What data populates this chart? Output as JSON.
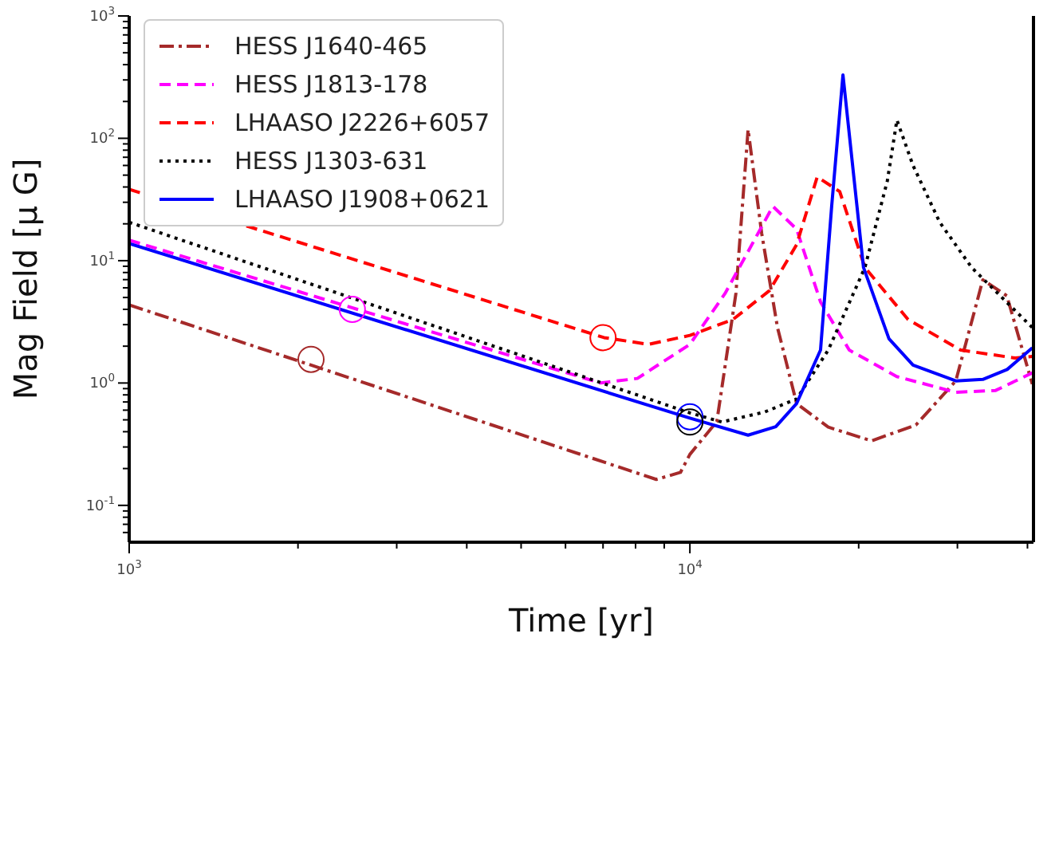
{
  "chart_data": {
    "type": "line",
    "xlabel": "Time [yr]",
    "ylabel": "Mag Field [μ G]",
    "log": "xy",
    "legend": "top left",
    "marker": "none",
    "xlim": [
      1000,
      41000
    ],
    "ylim": [
      0.05,
      1000
    ],
    "xticks": [
      {
        "value": 1000,
        "label": "10$^{3}$"
      },
      {
        "value": 2000,
        "label": null
      },
      {
        "value": 3000,
        "label": null
      },
      {
        "value": 4000,
        "label": null
      },
      {
        "value": 5000,
        "label": null
      },
      {
        "value": 6000,
        "label": null
      },
      {
        "value": 7000,
        "label": null
      },
      {
        "value": 8000,
        "label": null
      },
      {
        "value": 9000,
        "label": null
      },
      {
        "value": 10000,
        "label": "10$^{4}$"
      },
      {
        "value": 20000,
        "label": null
      },
      {
        "value": 30000,
        "label": null
      },
      {
        "value": 40000,
        "label": null
      }
    ],
    "yticks": [
      {
        "value": 0.06,
        "label": null
      },
      {
        "value": 0.07,
        "label": null
      },
      {
        "value": 0.08,
        "label": null
      },
      {
        "value": 0.09,
        "label": null
      },
      {
        "value": 0.1,
        "label": "10$^{-1}$"
      },
      {
        "value": 0.2,
        "label": null
      },
      {
        "value": 0.3,
        "label": null
      },
      {
        "value": 0.4,
        "label": null
      },
      {
        "value": 0.5,
        "label": null
      },
      {
        "value": 0.6,
        "label": null
      },
      {
        "value": 0.7,
        "label": null
      },
      {
        "value": 0.8,
        "label": null
      },
      {
        "value": 0.9,
        "label": null
      },
      {
        "value": 1,
        "label": "10$^{0}$"
      },
      {
        "value": 2,
        "label": null
      },
      {
        "value": 3,
        "label": null
      },
      {
        "value": 4,
        "label": null
      },
      {
        "value": 5,
        "label": null
      },
      {
        "value": 6,
        "label": null
      },
      {
        "value": 7,
        "label": null
      },
      {
        "value": 8,
        "label": null
      },
      {
        "value": 9,
        "label": null
      },
      {
        "value": 10,
        "label": "10$^{1}$"
      },
      {
        "value": 20,
        "label": null
      },
      {
        "value": 30,
        "label": null
      },
      {
        "value": 40,
        "label": null
      },
      {
        "value": 50,
        "label": null
      },
      {
        "value": 60,
        "label": null
      },
      {
        "value": 70,
        "label": null
      },
      {
        "value": 80,
        "label": null
      },
      {
        "value": 90,
        "label": null
      },
      {
        "value": 100,
        "label": "10$^{2}$"
      },
      {
        "value": 200,
        "label": null
      },
      {
        "value": 300,
        "label": null
      },
      {
        "value": 400,
        "label": null
      },
      {
        "value": 500,
        "label": null
      },
      {
        "value": 600,
        "label": null
      },
      {
        "value": 700,
        "label": null
      },
      {
        "value": 800,
        "label": null
      },
      {
        "value": 900,
        "label": null
      },
      {
        "value": 1000,
        "label": "10$^{3}$"
      }
    ],
    "series": [
      {
        "name": "HESS J1640-465",
        "color": "#a52a2a",
        "line_style": "dashdot",
        "x": [
          1000,
          8710,
          9620,
          10000,
          11170,
          12080,
          12700,
          13430,
          14330,
          15500,
          17650,
          21090,
          25300,
          29800,
          33300,
          36750,
          40800
        ],
        "values": [
          4.35,
          0.163,
          0.186,
          0.261,
          0.484,
          5.4,
          118,
          16.7,
          2.84,
          0.68,
          0.436,
          0.337,
          0.454,
          1.04,
          6.97,
          5.16,
          0.98
        ]
      },
      {
        "name": "HESS J1813-178",
        "color": "#ff00ff",
        "line_style": "dashed",
        "x": [
          1000,
          6930,
          8060,
          10000,
          11550,
          14060,
          15500,
          17100,
          19240,
          23380,
          29800,
          35100,
          40800
        ],
        "values": [
          14.7,
          1.0,
          1.09,
          2.07,
          5.38,
          27.8,
          18.1,
          4.6,
          1.86,
          1.13,
          0.84,
          0.87,
          1.21
        ]
      },
      {
        "name": "LHAASO J2226+6057",
        "color": "#ff0000",
        "line_style": "dashed",
        "x": [
          1000,
          7030,
          8440,
          10000,
          11930,
          13870,
          15500,
          16870,
          18500,
          20520,
          24500,
          30400,
          38000,
          40800
        ],
        "values": [
          38.3,
          2.35,
          2.07,
          2.45,
          3.3,
          5.7,
          13.5,
          48.4,
          36.7,
          8.8,
          3.3,
          1.86,
          1.6,
          1.65
        ]
      },
      {
        "name": "HESS J1303-631",
        "color": "#000000",
        "line_style": "dotted",
        "x": [
          1000,
          10000,
          11400,
          13600,
          15500,
          17650,
          20520,
          22500,
          23400,
          25000,
          27900,
          31800,
          40800
        ],
        "values": [
          20.6,
          0.57,
          0.48,
          0.58,
          0.74,
          1.86,
          8.8,
          45,
          141,
          60,
          20.6,
          8.8,
          2.84
        ]
      },
      {
        "name": "LHAASO J1908+0621",
        "color": "#0000ff",
        "line_style": "solid",
        "x": [
          1000,
          10000,
          12700,
          14230,
          15500,
          17100,
          17900,
          18750,
          20400,
          22650,
          25000,
          29800,
          33300,
          36800,
          40800
        ],
        "values": [
          13.8,
          0.516,
          0.375,
          0.44,
          0.68,
          1.86,
          27.8,
          330,
          8.8,
          2.3,
          1.4,
          1.04,
          1.07,
          1.29,
          1.94
        ]
      },
      {
        "type": "scatter",
        "color": "#a52a2a",
        "marker": "circle",
        "x": [
          2110
        ],
        "values": [
          1.56
        ]
      },
      {
        "type": "scatter",
        "color": "#ff00ff",
        "marker": "circle",
        "x": [
          2500
        ],
        "values": [
          4.0
        ]
      },
      {
        "type": "scatter",
        "color": "#ff0000",
        "marker": "circle",
        "x": [
          7000
        ],
        "values": [
          2.35
        ]
      },
      {
        "type": "scatter",
        "color": "#0000ff",
        "marker": "circle",
        "x": [
          10000
        ],
        "values": [
          0.53
        ]
      },
      {
        "type": "scatter",
        "color": "#000000",
        "marker": "circle",
        "x": [
          10000
        ],
        "values": [
          0.48
        ]
      }
    ]
  }
}
